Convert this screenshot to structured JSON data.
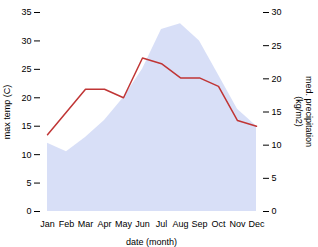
{
  "chart_data": {
    "type": "area",
    "categories": [
      "Jan",
      "Feb",
      "Mar",
      "Apr",
      "May",
      "Jun",
      "Jul",
      "Aug",
      "Sep",
      "Oct",
      "Nov",
      "Dec"
    ],
    "series": [
      {
        "type": "area",
        "color": "#b8c4f0",
        "values": [
          12,
          10.5,
          13,
          16,
          20,
          25,
          32,
          33,
          30,
          24,
          18,
          15
        ]
      },
      {
        "type": "line",
        "color": "#c03535",
        "values": [
          13.5,
          17.5,
          21.5,
          21.5,
          20,
          27,
          26,
          23.5,
          23.5,
          22,
          16,
          15
        ]
      }
    ],
    "xlabel": "date (month)",
    "ylabel": "max temp (C)",
    "ylim": [
      0,
      35
    ],
    "yticks": [
      0,
      5,
      10,
      15,
      20,
      25,
      30,
      35
    ],
    "y2label": "med. precipitation\n(kg/m2)",
    "y2lim": [
      0,
      30
    ],
    "y2ticks": [
      0,
      5,
      10,
      15,
      20,
      25,
      30
    ]
  }
}
